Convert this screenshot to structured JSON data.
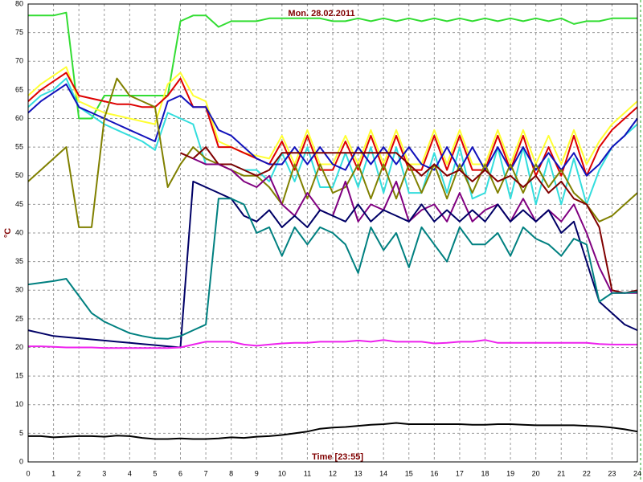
{
  "chart_data": {
    "type": "line",
    "title": "Mon. 28.02.2011",
    "xlabel": "Time [23:55]",
    "ylabel": "°C",
    "xlim": [
      0,
      24
    ],
    "ylim": [
      0,
      80
    ],
    "xticks": [
      0,
      1,
      2,
      3,
      4,
      5,
      6,
      7,
      8,
      9,
      10,
      11,
      12,
      13,
      14,
      15,
      16,
      17,
      18,
      19,
      20,
      21,
      22,
      23,
      24
    ],
    "yticks": [
      0,
      5,
      10,
      15,
      20,
      25,
      30,
      35,
      40,
      45,
      50,
      55,
      60,
      65,
      70,
      75,
      80
    ],
    "grid": true,
    "x": [
      0,
      0.5,
      1,
      1.5,
      2,
      2.5,
      3,
      3.5,
      4,
      4.5,
      5,
      5.5,
      6,
      6.5,
      7,
      7.5,
      8,
      8.5,
      9,
      9.5,
      10,
      10.5,
      11,
      11.5,
      12,
      12.5,
      13,
      13.5,
      14,
      14.5,
      15,
      15.5,
      16,
      16.5,
      17,
      17.5,
      18,
      18.5,
      19,
      19.5,
      20,
      20.5,
      21,
      21.5,
      22,
      22.5,
      23,
      23.5,
      24
    ],
    "series": [
      {
        "color": "#33dd33",
        "values": [
          78,
          78,
          78,
          78.5,
          60,
          60,
          64,
          64,
          64,
          64,
          64,
          64,
          77,
          78,
          78,
          76,
          77,
          77,
          77,
          77.5,
          77.5,
          77.5,
          77.5,
          77.5,
          77,
          77,
          77.5,
          77,
          77.5,
          77,
          77.5,
          77,
          77.5,
          77,
          77.5,
          77,
          77.5,
          77,
          77.5,
          77,
          77.5,
          77,
          77.5,
          76.5,
          77,
          77,
          77.5,
          77.5,
          77.5
        ]
      },
      {
        "color": "#ffff33",
        "values": [
          64,
          66,
          67.5,
          69,
          63,
          62,
          61,
          60.5,
          60,
          59.5,
          59,
          66,
          68,
          64,
          63,
          56,
          55,
          54,
          53.5,
          53,
          57,
          52,
          58,
          52,
          52,
          57,
          52,
          58,
          52,
          58,
          52,
          52,
          58,
          52,
          58,
          52,
          52,
          58,
          52,
          58,
          52,
          57,
          52,
          58,
          52,
          56,
          59,
          61,
          63
        ]
      },
      {
        "color": "#dd0000",
        "values": [
          63,
          65,
          66.5,
          68,
          64,
          63.5,
          63,
          62.5,
          62.5,
          62,
          62,
          64,
          67,
          62,
          62,
          55,
          55,
          54,
          53,
          52,
          56,
          51,
          57,
          51,
          51,
          56,
          51,
          57,
          51,
          57,
          51,
          51,
          57,
          51,
          57,
          51,
          51,
          57,
          51,
          57,
          50,
          55,
          50,
          57,
          50,
          55,
          58,
          60,
          62
        ]
      },
      {
        "color": "#33dddd",
        "values": [
          62,
          64,
          65,
          67,
          62,
          60.5,
          59,
          58,
          57,
          56,
          54.5,
          61,
          60,
          59,
          52,
          52,
          52,
          51,
          51,
          49,
          54,
          49,
          55,
          48,
          48,
          54,
          48,
          55,
          47,
          55,
          47,
          47,
          54,
          47,
          55,
          46,
          47,
          55,
          46,
          55,
          45,
          53,
          45,
          53,
          45,
          51,
          55,
          57,
          59
        ]
      },
      {
        "color": "#1111bb",
        "values": [
          61,
          63,
          64.5,
          66,
          62,
          61,
          60,
          59,
          58,
          57,
          56,
          63,
          64,
          62,
          62,
          58,
          57,
          55,
          53,
          52,
          52,
          55,
          52,
          55,
          52,
          51,
          55,
          52,
          55,
          52,
          55,
          52,
          51,
          55,
          51,
          55,
          51,
          55,
          51,
          55,
          51,
          54,
          51,
          54,
          50,
          52,
          55,
          57,
          60
        ]
      },
      {
        "color": "#808000",
        "values": [
          49,
          51,
          53,
          55,
          41,
          41,
          60,
          67,
          64,
          63,
          62,
          48,
          52,
          55,
          53,
          52,
          51,
          50,
          50,
          48,
          45,
          52,
          46,
          52,
          47,
          48,
          52,
          46,
          52,
          46,
          52,
          47,
          52,
          46,
          52,
          47,
          52,
          47,
          52,
          47,
          52,
          48,
          51,
          47,
          45,
          42,
          43,
          45,
          47
        ]
      },
      {
        "color": "#800000",
        "values": [
          null,
          null,
          null,
          null,
          null,
          null,
          null,
          null,
          null,
          null,
          null,
          null,
          54,
          53,
          55,
          52,
          52,
          51,
          50,
          51,
          54,
          54,
          54,
          54,
          54,
          54,
          54,
          54,
          54,
          54,
          52,
          50,
          52,
          50,
          51,
          49,
          51,
          49,
          50,
          48,
          50,
          47,
          49,
          46,
          45,
          41,
          30,
          29.5,
          30
        ]
      },
      {
        "color": "#800080",
        "values": [
          null,
          null,
          null,
          null,
          null,
          null,
          null,
          null,
          null,
          null,
          null,
          null,
          null,
          53,
          52,
          52,
          51,
          49,
          48,
          50,
          45,
          43,
          47,
          44,
          43,
          49,
          42,
          45,
          44,
          49,
          42,
          44,
          45,
          42,
          47,
          42,
          44,
          45,
          42,
          46,
          42,
          44,
          42,
          45,
          40,
          34,
          29.5,
          29.5,
          29.5
        ]
      },
      {
        "color": "#000066",
        "values": [
          23,
          22.5,
          22,
          21.8,
          21.6,
          21.4,
          21.2,
          21,
          20.8,
          20.6,
          20.4,
          20.2,
          20,
          49,
          48,
          47,
          46,
          43,
          42,
          44,
          41,
          43,
          41,
          44,
          43,
          42,
          45,
          42,
          44,
          43,
          42,
          45,
          42,
          44,
          42,
          44,
          42,
          45,
          42,
          44,
          42,
          44,
          40,
          42,
          35,
          28,
          26,
          24,
          23
        ]
      },
      {
        "color": "#008080",
        "values": [
          31,
          31.3,
          31.6,
          32,
          29,
          26,
          24.5,
          23.5,
          22.5,
          22,
          21.6,
          21.5,
          22,
          23,
          24,
          46,
          46,
          45,
          40,
          41,
          36,
          41,
          38,
          41,
          40,
          38,
          33,
          41,
          37,
          40,
          34,
          41,
          38,
          35,
          41,
          38,
          38,
          40,
          36,
          41,
          39,
          38,
          36,
          39,
          38,
          28,
          29.5,
          29.5,
          29.7
        ]
      },
      {
        "color": "#ee22ee",
        "values": [
          20.2,
          20.2,
          20.1,
          20,
          20,
          20,
          19.9,
          19.9,
          19.9,
          19.9,
          19.9,
          19.9,
          20,
          20.5,
          21,
          21,
          21,
          20.5,
          20.3,
          20.5,
          20.7,
          20.8,
          20.8,
          21,
          21,
          21,
          21.2,
          21,
          21.3,
          21,
          21,
          21,
          20.7,
          20.8,
          21,
          21,
          21.3,
          20.8,
          20.8,
          20.8,
          20.8,
          20.8,
          20.8,
          20.8,
          20.8,
          20.6,
          20.5,
          20.5,
          20.5
        ]
      },
      {
        "color": "#000000",
        "values": [
          4.5,
          4.5,
          4.3,
          4.4,
          4.5,
          4.5,
          4.4,
          4.6,
          4.5,
          4.2,
          4,
          4,
          4.1,
          4,
          4,
          4.1,
          4.3,
          4.2,
          4.4,
          4.5,
          4.7,
          5,
          5.3,
          5.8,
          6,
          6.1,
          6.3,
          6.5,
          6.6,
          6.8,
          6.6,
          6.6,
          6.6,
          6.6,
          6.6,
          6.5,
          6.5,
          6.6,
          6.6,
          6.5,
          6.4,
          6.4,
          6.4,
          6.4,
          6.3,
          6.2,
          6,
          5.7,
          5.3
        ]
      }
    ]
  }
}
